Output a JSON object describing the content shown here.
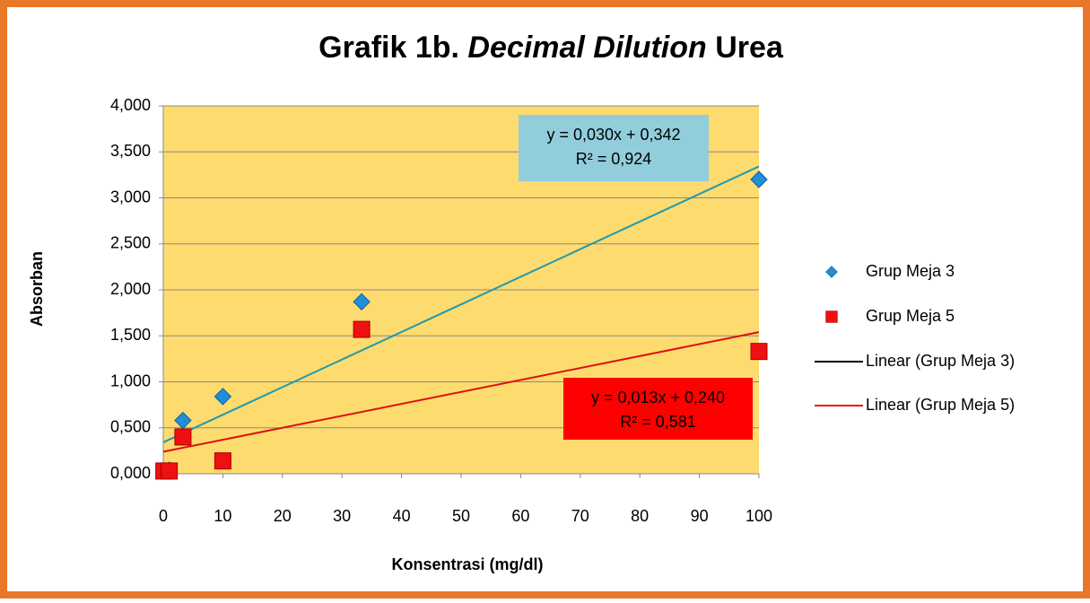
{
  "chart_data": {
    "type": "scatter",
    "title": [
      "Grafik 1b. ",
      "Decimal Dilution",
      " Urea"
    ],
    "x_label": "Konsentrasi (mg/dl)",
    "y_label": "Absorban",
    "xlim": [
      0,
      100
    ],
    "xticks": [
      0,
      10,
      20,
      30,
      40,
      50,
      60,
      70,
      80,
      90,
      100
    ],
    "ylim": [
      0,
      4
    ],
    "yticks": [
      {
        "value": 0,
        "label": "0,000"
      },
      {
        "value": 0.5,
        "label": "0,500"
      },
      {
        "value": 1,
        "label": "1,000"
      },
      {
        "value": 1.5,
        "label": "1,500"
      },
      {
        "value": 2,
        "label": "2,000"
      },
      {
        "value": 2.5,
        "label": "2,500"
      },
      {
        "value": 3,
        "label": "3,000"
      },
      {
        "value": 3.5,
        "label": "3,500"
      },
      {
        "value": 4,
        "label": "4,000"
      }
    ],
    "grid": true,
    "series": [
      {
        "name": "Grup Meja 3",
        "color": "#1e8fd8",
        "marker": "diamond",
        "x": [
          0.1,
          1,
          3.3,
          10,
          33.3,
          100
        ],
        "values": [
          0.03,
          0.04,
          0.58,
          0.84,
          1.87,
          3.2
        ]
      },
      {
        "name": "Grup Meja 5",
        "color": "#ee1111",
        "marker": "square",
        "x": [
          0.1,
          1,
          3.3,
          10,
          33.3,
          100
        ],
        "values": [
          0.03,
          0.03,
          0.4,
          0.14,
          1.57,
          1.33
        ]
      }
    ],
    "trendlines": [
      {
        "name": "Linear (Grup Meja 3)",
        "color": "#1f9ab0",
        "legend_color": "#000000",
        "slope": 0.03,
        "intercept": 0.342,
        "r2": 0.924,
        "equation": "y = 0,030x + 0,342",
        "r2_label": "R² = 0,924",
        "box_color": "#92cddc"
      },
      {
        "name": "Linear (Grup Meja 5)",
        "color": "#dd1111",
        "legend_color": "#ee1111",
        "slope": 0.013,
        "intercept": 0.24,
        "r2": 0.581,
        "equation": "y = 0,013x + 0,240",
        "r2_label": "R² = 0,581",
        "box_color": "#ff0000"
      }
    ]
  }
}
